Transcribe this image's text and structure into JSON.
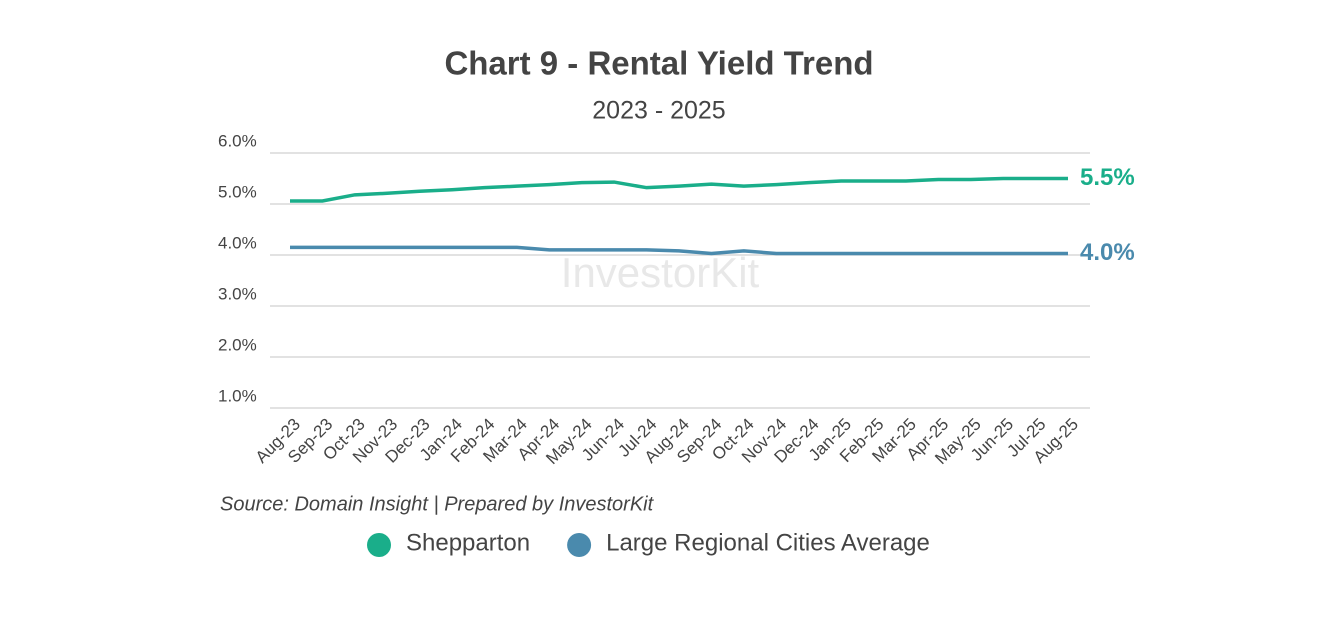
{
  "chart_data": {
    "type": "line",
    "title": "Chart 9 - Rental Yield Trend",
    "subtitle": "2023 - 2025",
    "source": "Source: Domain Insight | Prepared by InvestorKit",
    "watermark": "InvestorKit",
    "categories": [
      "Aug-23",
      "Sep-23",
      "Oct-23",
      "Nov-23",
      "Dec-23",
      "Jan-24",
      "Feb-24",
      "Mar-24",
      "Apr-24",
      "May-24",
      "Jun-24",
      "Jul-24",
      "Aug-24",
      "Sep-24",
      "Oct-24",
      "Nov-24",
      "Dec-24",
      "Jan-25",
      "Feb-25",
      "Mar-25",
      "Apr-25",
      "May-25",
      "Jun-25",
      "Jul-25",
      "Aug-25"
    ],
    "series": [
      {
        "name": "Shepparton",
        "color": "#1aae8a",
        "values": [
          5.06,
          5.06,
          5.18,
          5.21,
          5.25,
          5.28,
          5.32,
          5.35,
          5.38,
          5.42,
          5.43,
          5.32,
          5.35,
          5.39,
          5.35,
          5.38,
          5.42,
          5.45,
          5.45,
          5.45,
          5.48,
          5.48,
          5.5,
          5.5,
          5.5
        ],
        "value_labels": [
          null,
          null,
          null,
          null,
          null,
          null,
          null,
          null,
          null,
          null,
          null,
          null,
          null,
          null,
          null,
          null,
          null,
          null,
          null,
          null,
          null,
          null,
          null,
          null,
          "5.5%"
        ]
      },
      {
        "name": "Large Regional Cities Average",
        "color": "#4a8aad",
        "values": [
          4.15,
          4.15,
          4.15,
          4.15,
          4.15,
          4.15,
          4.15,
          4.15,
          4.1,
          4.1,
          4.1,
          4.1,
          4.08,
          4.03,
          4.08,
          4.03,
          4.03,
          4.03,
          4.03,
          4.03,
          4.03,
          4.03,
          4.03,
          4.03,
          4.03
        ],
        "value_labels": [
          null,
          null,
          null,
          null,
          null,
          null,
          null,
          null,
          null,
          null,
          null,
          null,
          null,
          null,
          null,
          null,
          null,
          null,
          null,
          null,
          null,
          null,
          null,
          null,
          "4.0%"
        ]
      }
    ],
    "ylim": [
      1,
      6
    ],
    "yticks": [
      {
        "value": 1,
        "label": "1.0%"
      },
      {
        "value": 2,
        "label": "2.0%"
      },
      {
        "value": 3,
        "label": "3.0%"
      },
      {
        "value": 4,
        "label": "4.0%"
      },
      {
        "value": 5,
        "label": "5.0%"
      },
      {
        "value": 6,
        "label": "6.0%"
      }
    ],
    "grid": true
  }
}
